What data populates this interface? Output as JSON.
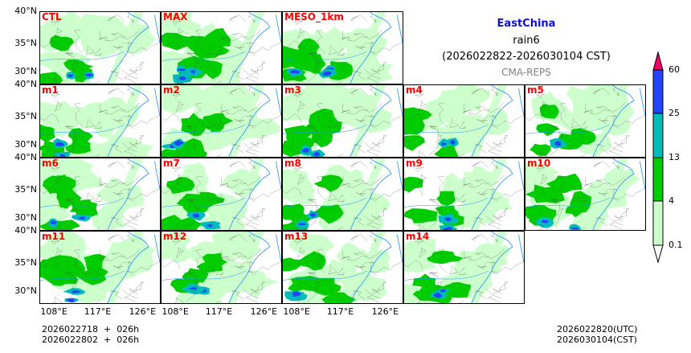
{
  "region": "EastChina",
  "variable": "rain6",
  "period": "(2026022822-2026030104 CST)",
  "source": "CMA-REPS",
  "lat_labels": [
    "40°N",
    "35°N",
    "30°N"
  ],
  "lon_labels": [
    "108°E",
    "117°E",
    "126°E"
  ],
  "panels": [
    {
      "label": "CTL",
      "row": 0,
      "col": 0
    },
    {
      "label": "MAX",
      "row": 0,
      "col": 1
    },
    {
      "label": "MESO_1km",
      "row": 0,
      "col": 2
    },
    {
      "label": "m1",
      "row": 1,
      "col": 0
    },
    {
      "label": "m2",
      "row": 1,
      "col": 1
    },
    {
      "label": "m3",
      "row": 1,
      "col": 2
    },
    {
      "label": "m4",
      "row": 1,
      "col": 3
    },
    {
      "label": "m5",
      "row": 1,
      "col": 4
    },
    {
      "label": "m6",
      "row": 2,
      "col": 0
    },
    {
      "label": "m7",
      "row": 2,
      "col": 1
    },
    {
      "label": "m8",
      "row": 2,
      "col": 2
    },
    {
      "label": "m9",
      "row": 2,
      "col": 3
    },
    {
      "label": "m10",
      "row": 2,
      "col": 4
    },
    {
      "label": "m11",
      "row": 3,
      "col": 0
    },
    {
      "label": "m12",
      "row": 3,
      "col": 1
    },
    {
      "label": "m13",
      "row": 3,
      "col": 2
    },
    {
      "label": "m14",
      "row": 3,
      "col": 3
    }
  ],
  "colorbar": {
    "levels": [
      "0.1",
      "4",
      "13",
      "25",
      "60"
    ],
    "colors": [
      "#ccffcc",
      "#00cc00",
      "#00bbbb",
      "#2244ff",
      "#ee0066"
    ]
  },
  "footer": {
    "init_utc": "2026022718  +  026h",
    "init_cst": "2026022802  +  026h",
    "valid_utc": "2026022820(UTC)",
    "valid_cst": "2026030104(CST)"
  }
}
